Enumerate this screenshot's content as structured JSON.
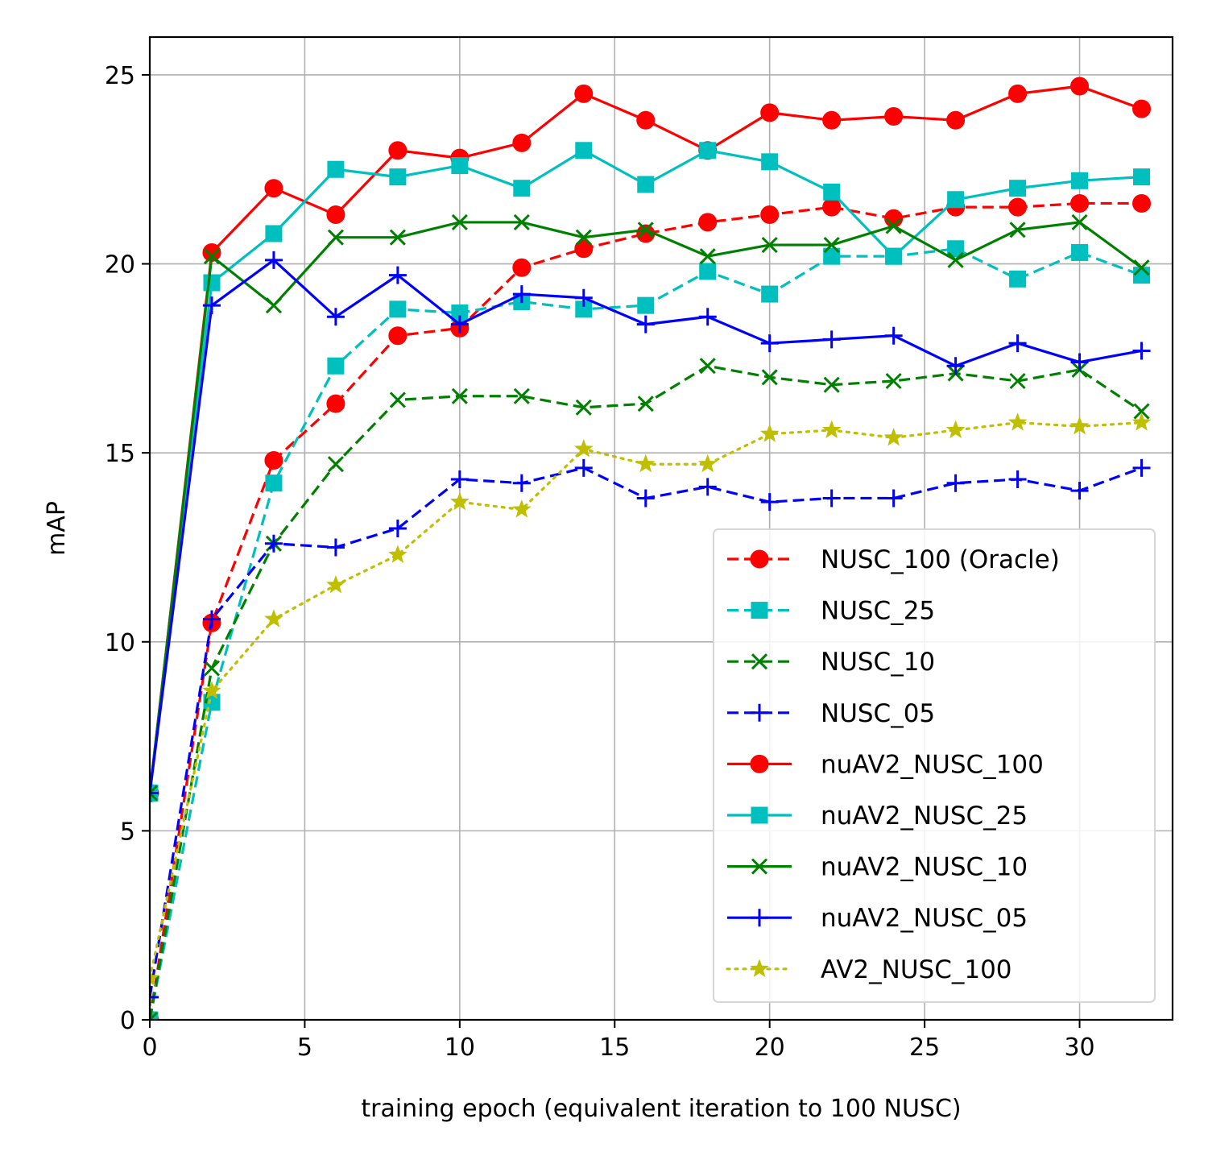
{
  "chart_data": {
    "type": "line",
    "title": "",
    "xlabel": "training epoch (equivalent iteration to 100 NUSC)",
    "ylabel": "mAP",
    "xlim": [
      0,
      33
    ],
    "ylim": [
      0,
      26
    ],
    "xticks": [
      0,
      5,
      10,
      15,
      20,
      25,
      30
    ],
    "yticks": [
      0,
      5,
      10,
      15,
      20,
      25
    ],
    "grid": true,
    "legend_position": "lower-right",
    "x": [
      0,
      2,
      4,
      6,
      8,
      10,
      12,
      14,
      16,
      18,
      20,
      22,
      24,
      26,
      28,
      30,
      32
    ],
    "series": [
      {
        "name": "NUSC_100 (Oracle)",
        "color": "#ff0000",
        "dash": "dashed",
        "marker": "circle",
        "values": [
          0,
          10.5,
          14.8,
          16.3,
          18.1,
          18.3,
          19.9,
          20.4,
          20.8,
          21.1,
          21.3,
          21.5,
          21.2,
          21.5,
          21.5,
          21.6,
          21.6
        ]
      },
      {
        "name": "NUSC_25",
        "color": "#00bfbf",
        "dash": "dashed",
        "marker": "square",
        "values": [
          0,
          8.4,
          14.2,
          17.3,
          18.8,
          18.7,
          19.0,
          18.8,
          18.9,
          19.8,
          19.2,
          20.2,
          20.2,
          20.4,
          19.6,
          20.3,
          19.7
        ]
      },
      {
        "name": "NUSC_10",
        "color": "#008000",
        "dash": "dashed",
        "marker": "x",
        "values": [
          0,
          9.3,
          12.6,
          14.7,
          16.4,
          16.5,
          16.5,
          16.2,
          16.3,
          17.3,
          17.0,
          16.8,
          16.9,
          17.1,
          16.9,
          17.2,
          16.1
        ]
      },
      {
        "name": "NUSC_05",
        "color": "#0000ff",
        "dash": "dashed",
        "marker": "plus",
        "values": [
          0.6,
          10.6,
          12.6,
          12.5,
          13.0,
          14.3,
          14.2,
          14.6,
          13.8,
          14.1,
          13.7,
          13.8,
          13.8,
          14.2,
          14.3,
          14.0,
          14.6
        ]
      },
      {
        "name": "nuAV2_NUSC_100",
        "color": "#ff0000",
        "dash": "solid",
        "marker": "circle",
        "values": [
          6.0,
          20.3,
          22.0,
          21.3,
          23.0,
          22.8,
          23.2,
          24.5,
          23.8,
          23.0,
          24.0,
          23.8,
          23.9,
          23.8,
          24.5,
          24.7,
          24.1
        ]
      },
      {
        "name": "nuAV2_NUSC_25",
        "color": "#00bfbf",
        "dash": "solid",
        "marker": "square",
        "values": [
          6.0,
          19.5,
          20.8,
          22.5,
          22.3,
          22.6,
          22.0,
          23.0,
          22.1,
          23.0,
          22.7,
          21.9,
          20.2,
          21.7,
          22.0,
          22.2,
          22.3
        ]
      },
      {
        "name": "nuAV2_NUSC_10",
        "color": "#008000",
        "dash": "solid",
        "marker": "x",
        "values": [
          6.0,
          20.2,
          18.9,
          20.7,
          20.7,
          21.1,
          21.1,
          20.7,
          20.9,
          20.2,
          20.5,
          20.5,
          21.0,
          20.1,
          20.9,
          21.1,
          19.9
        ]
      },
      {
        "name": "nuAV2_NUSC_05",
        "color": "#0000ff",
        "dash": "solid",
        "marker": "plus",
        "values": [
          6.0,
          18.9,
          20.1,
          18.6,
          19.7,
          18.4,
          19.2,
          19.1,
          18.4,
          18.6,
          17.9,
          18.0,
          18.1,
          17.3,
          17.9,
          17.4,
          17.7
        ]
      },
      {
        "name": "AV2_NUSC_100",
        "color": "#bfbf00",
        "dash": "dotted",
        "marker": "star",
        "values": [
          1.1,
          8.7,
          10.6,
          11.5,
          12.3,
          13.7,
          13.5,
          15.1,
          14.7,
          14.7,
          15.5,
          15.6,
          15.4,
          15.6,
          15.8,
          15.7,
          15.8
        ]
      }
    ]
  }
}
